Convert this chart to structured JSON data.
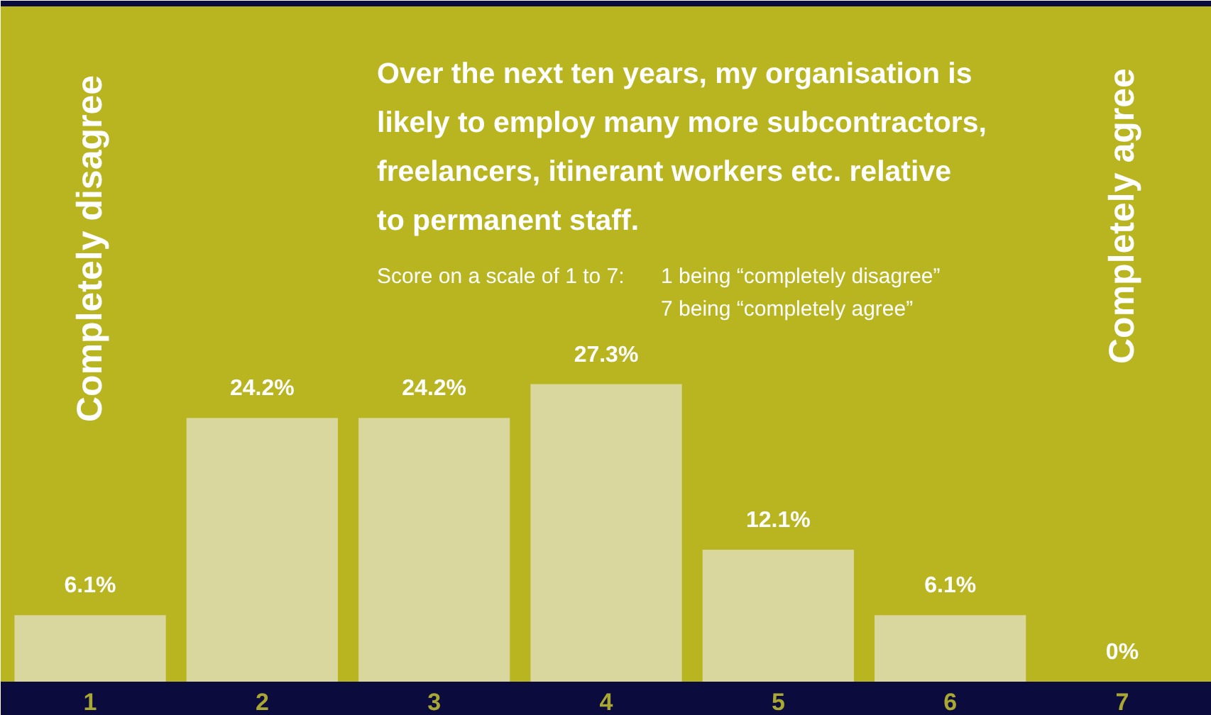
{
  "chart_data": {
    "type": "bar",
    "title": "Over the next ten years, my organisation is\nlikely to employ many more subcontractors,\nfreelancers, itinerant workers etc. relative\nto permanent staff.",
    "subtitle": "Score on a scale of 1 to 7:\n1 being “completely disagree”\n7 being “completely agree”",
    "annotations": [
      "Completely disagree",
      "Completely agree"
    ],
    "categories": [
      "1",
      "2",
      "3",
      "4",
      "5",
      "6",
      "7"
    ],
    "values": [
      6.1,
      24.2,
      24.2,
      27.3,
      12.1,
      6.1,
      0
    ],
    "value_labels": [
      "6.1%",
      "24.2%",
      "24.2%",
      "27.3%",
      "12.1%",
      "6.1%",
      "0%"
    ],
    "color": "#d9d69e",
    "tick_labels": "x",
    "grid": false
  }
}
